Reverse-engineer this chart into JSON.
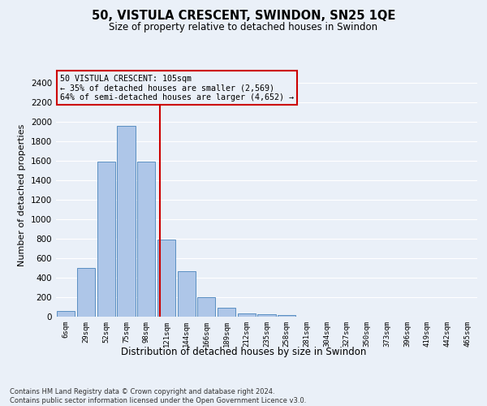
{
  "title": "50, VISTULA CRESCENT, SWINDON, SN25 1QE",
  "subtitle": "Size of property relative to detached houses in Swindon",
  "xlabel": "Distribution of detached houses by size in Swindon",
  "ylabel": "Number of detached properties",
  "bar_labels": [
    "6sqm",
    "29sqm",
    "52sqm",
    "75sqm",
    "98sqm",
    "121sqm",
    "144sqm",
    "166sqm",
    "189sqm",
    "212sqm",
    "235sqm",
    "258sqm",
    "281sqm",
    "304sqm",
    "327sqm",
    "350sqm",
    "373sqm",
    "396sqm",
    "419sqm",
    "442sqm",
    "465sqm"
  ],
  "bar_values": [
    55,
    500,
    1590,
    1960,
    1590,
    790,
    470,
    200,
    90,
    35,
    25,
    20,
    0,
    0,
    0,
    0,
    0,
    0,
    0,
    0,
    0
  ],
  "bar_color": "#aec6e8",
  "bar_edge_color": "#5a8fc2",
  "property_label": "50 VISTULA CRESCENT: 105sqm",
  "annotation_line1": "← 35% of detached houses are smaller (2,569)",
  "annotation_line2": "64% of semi-detached houses are larger (4,652) →",
  "vline_color": "#cc0000",
  "vline_x": 4.67,
  "annotation_box_color": "#cc0000",
  "ylim": [
    0,
    2500
  ],
  "yticks": [
    0,
    200,
    400,
    600,
    800,
    1000,
    1200,
    1400,
    1600,
    1800,
    2000,
    2200,
    2400
  ],
  "footer_line1": "Contains HM Land Registry data © Crown copyright and database right 2024.",
  "footer_line2": "Contains public sector information licensed under the Open Government Licence v3.0.",
  "bg_color": "#eaf0f8",
  "grid_color": "#ffffff"
}
